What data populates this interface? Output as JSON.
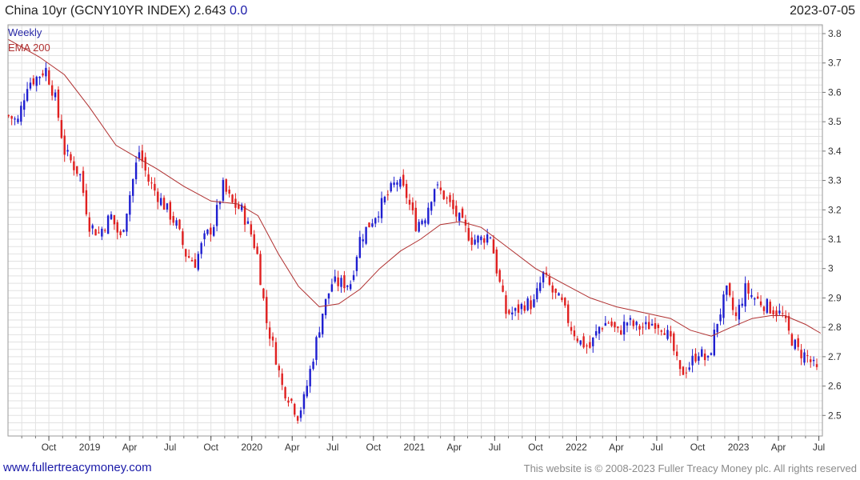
{
  "header": {
    "title": "China 10yr (GCNY10YR INDEX) 2.643",
    "change": "0.0",
    "date": "2023-07-05"
  },
  "footer": {
    "link": "www.fullertreacymoney.com",
    "copyright": "This website is © 2008-2023 Fuller Treacy Money plc. All rights reserved"
  },
  "colors": {
    "up": "#1f1fd0",
    "down": "#e02020",
    "ema": "#b03030",
    "grid": "#e2e2e2"
  },
  "chart_data": {
    "type": "candlestick",
    "legend": [
      "Weekly",
      "EMA 200"
    ],
    "legend_placement": "top-left",
    "grid": true,
    "ylim": [
      2.43,
      3.83
    ],
    "y_ticks": [
      2.5,
      2.6,
      2.7,
      2.8,
      2.9,
      3,
      3.1,
      3.2,
      3.3,
      3.4,
      3.5,
      3.6,
      3.7,
      3.8
    ],
    "y_tick_labels": [
      "2.5",
      "2.6",
      "2.7",
      "2.8",
      "2.9",
      "3",
      "3.1",
      "3.2",
      "3.3",
      "3.4",
      "3.5",
      "3.6",
      "3.7",
      "3.8"
    ],
    "x_range": [
      "2018-07-01",
      "2023-07-09"
    ],
    "x_ticks": [
      {
        "date": "2018-10-01",
        "label": "Oct"
      },
      {
        "date": "2019-01-01",
        "label": "2019"
      },
      {
        "date": "2019-04-01",
        "label": "Apr"
      },
      {
        "date": "2019-07-01",
        "label": "Jul"
      },
      {
        "date": "2019-10-01",
        "label": "Oct"
      },
      {
        "date": "2020-01-01",
        "label": "2020"
      },
      {
        "date": "2020-04-01",
        "label": "Apr"
      },
      {
        "date": "2020-07-01",
        "label": "Jul"
      },
      {
        "date": "2020-10-01",
        "label": "Oct"
      },
      {
        "date": "2021-01-01",
        "label": "2021"
      },
      {
        "date": "2021-04-01",
        "label": "Apr"
      },
      {
        "date": "2021-07-01",
        "label": "Jul"
      },
      {
        "date": "2021-10-01",
        "label": "Oct"
      },
      {
        "date": "2022-01-01",
        "label": "2022"
      },
      {
        "date": "2022-04-01",
        "label": "Apr"
      },
      {
        "date": "2022-07-01",
        "label": "Jul"
      },
      {
        "date": "2022-10-01",
        "label": "Oct"
      },
      {
        "date": "2023-01-01",
        "label": "2023"
      },
      {
        "date": "2023-04-01",
        "label": "Apr"
      },
      {
        "date": "2023-07-01",
        "label": "Jul"
      }
    ],
    "weekly_close": [
      {
        "date": "2018-07-02",
        "value": 3.52
      },
      {
        "date": "2018-07-23",
        "value": 3.5
      },
      {
        "date": "2018-08-13",
        "value": 3.63
      },
      {
        "date": "2018-09-03",
        "value": 3.65
      },
      {
        "date": "2018-09-24",
        "value": 3.68
      },
      {
        "date": "2018-10-15",
        "value": 3.58
      },
      {
        "date": "2018-11-05",
        "value": 3.4
      },
      {
        "date": "2018-11-26",
        "value": 3.35
      },
      {
        "date": "2018-12-10",
        "value": 3.32
      },
      {
        "date": "2018-12-31",
        "value": 3.15
      },
      {
        "date": "2019-01-21",
        "value": 3.12
      },
      {
        "date": "2019-02-18",
        "value": 3.18
      },
      {
        "date": "2019-03-11",
        "value": 3.1
      },
      {
        "date": "2019-04-01",
        "value": 3.25
      },
      {
        "date": "2019-04-22",
        "value": 3.4
      },
      {
        "date": "2019-05-13",
        "value": 3.3
      },
      {
        "date": "2019-06-03",
        "value": 3.25
      },
      {
        "date": "2019-06-24",
        "value": 3.2
      },
      {
        "date": "2019-07-15",
        "value": 3.15
      },
      {
        "date": "2019-08-05",
        "value": 3.05
      },
      {
        "date": "2019-08-26",
        "value": 3.02
      },
      {
        "date": "2019-09-16",
        "value": 3.1
      },
      {
        "date": "2019-10-07",
        "value": 3.15
      },
      {
        "date": "2019-10-28",
        "value": 3.28
      },
      {
        "date": "2019-11-18",
        "value": 3.22
      },
      {
        "date": "2019-12-09",
        "value": 3.2
      },
      {
        "date": "2019-12-30",
        "value": 3.12
      },
      {
        "date": "2020-01-13",
        "value": 3.05
      },
      {
        "date": "2020-02-03",
        "value": 2.82
      },
      {
        "date": "2020-02-24",
        "value": 2.7
      },
      {
        "date": "2020-03-09",
        "value": 2.6
      },
      {
        "date": "2020-03-30",
        "value": 2.55
      },
      {
        "date": "2020-04-13",
        "value": 2.5
      },
      {
        "date": "2020-04-27",
        "value": 2.55
      },
      {
        "date": "2020-05-18",
        "value": 2.7
      },
      {
        "date": "2020-06-08",
        "value": 2.85
      },
      {
        "date": "2020-06-29",
        "value": 2.95
      },
      {
        "date": "2020-07-20",
        "value": 2.95
      },
      {
        "date": "2020-08-10",
        "value": 2.95
      },
      {
        "date": "2020-08-31",
        "value": 3.1
      },
      {
        "date": "2020-09-21",
        "value": 3.15
      },
      {
        "date": "2020-10-12",
        "value": 3.2
      },
      {
        "date": "2020-11-02",
        "value": 3.25
      },
      {
        "date": "2020-11-23",
        "value": 3.3
      },
      {
        "date": "2020-12-14",
        "value": 3.25
      },
      {
        "date": "2021-01-04",
        "value": 3.15
      },
      {
        "date": "2021-01-25",
        "value": 3.18
      },
      {
        "date": "2021-02-15",
        "value": 3.28
      },
      {
        "date": "2021-03-08",
        "value": 3.25
      },
      {
        "date": "2021-03-29",
        "value": 3.2
      },
      {
        "date": "2021-04-19",
        "value": 3.15
      },
      {
        "date": "2021-05-10",
        "value": 3.1
      },
      {
        "date": "2021-05-31",
        "value": 3.1
      },
      {
        "date": "2021-06-21",
        "value": 3.12
      },
      {
        "date": "2021-07-05",
        "value": 3.0
      },
      {
        "date": "2021-07-26",
        "value": 2.85
      },
      {
        "date": "2021-08-16",
        "value": 2.85
      },
      {
        "date": "2021-09-06",
        "value": 2.88
      },
      {
        "date": "2021-09-27",
        "value": 2.88
      },
      {
        "date": "2021-10-18",
        "value": 2.98
      },
      {
        "date": "2021-11-08",
        "value": 2.92
      },
      {
        "date": "2021-11-29",
        "value": 2.88
      },
      {
        "date": "2021-12-20",
        "value": 2.8
      },
      {
        "date": "2022-01-10",
        "value": 2.75
      },
      {
        "date": "2022-01-31",
        "value": 2.73
      },
      {
        "date": "2022-02-21",
        "value": 2.8
      },
      {
        "date": "2022-03-14",
        "value": 2.82
      },
      {
        "date": "2022-04-04",
        "value": 2.78
      },
      {
        "date": "2022-04-25",
        "value": 2.82
      },
      {
        "date": "2022-05-16",
        "value": 2.8
      },
      {
        "date": "2022-06-06",
        "value": 2.8
      },
      {
        "date": "2022-06-27",
        "value": 2.82
      },
      {
        "date": "2022-07-18",
        "value": 2.8
      },
      {
        "date": "2022-08-08",
        "value": 2.72
      },
      {
        "date": "2022-08-22",
        "value": 2.64
      },
      {
        "date": "2022-09-12",
        "value": 2.67
      },
      {
        "date": "2022-10-03",
        "value": 2.72
      },
      {
        "date": "2022-10-24",
        "value": 2.68
      },
      {
        "date": "2022-11-14",
        "value": 2.82
      },
      {
        "date": "2022-12-05",
        "value": 2.92
      },
      {
        "date": "2022-12-26",
        "value": 2.83
      },
      {
        "date": "2023-01-16",
        "value": 2.93
      },
      {
        "date": "2023-02-06",
        "value": 2.9
      },
      {
        "date": "2023-02-27",
        "value": 2.88
      },
      {
        "date": "2023-03-20",
        "value": 2.86
      },
      {
        "date": "2023-04-10",
        "value": 2.84
      },
      {
        "date": "2023-04-24",
        "value": 2.78
      },
      {
        "date": "2023-05-15",
        "value": 2.72
      },
      {
        "date": "2023-06-05",
        "value": 2.7
      },
      {
        "date": "2023-06-26",
        "value": 2.65
      }
    ],
    "ema_200": [
      {
        "date": "2018-07-02",
        "value": 3.78
      },
      {
        "date": "2018-09-10",
        "value": 3.72
      },
      {
        "date": "2018-11-05",
        "value": 3.66
      },
      {
        "date": "2018-12-31",
        "value": 3.55
      },
      {
        "date": "2019-03-01",
        "value": 3.42
      },
      {
        "date": "2019-04-15",
        "value": 3.38
      },
      {
        "date": "2019-06-01",
        "value": 3.34
      },
      {
        "date": "2019-08-01",
        "value": 3.28
      },
      {
        "date": "2019-10-01",
        "value": 3.23
      },
      {
        "date": "2019-12-01",
        "value": 3.22
      },
      {
        "date": "2020-01-15",
        "value": 3.18
      },
      {
        "date": "2020-03-01",
        "value": 3.05
      },
      {
        "date": "2020-04-15",
        "value": 2.94
      },
      {
        "date": "2020-06-01",
        "value": 2.87
      },
      {
        "date": "2020-07-15",
        "value": 2.88
      },
      {
        "date": "2020-09-01",
        "value": 2.93
      },
      {
        "date": "2020-10-15",
        "value": 3.0
      },
      {
        "date": "2020-12-01",
        "value": 3.06
      },
      {
        "date": "2021-01-15",
        "value": 3.1
      },
      {
        "date": "2021-03-01",
        "value": 3.15
      },
      {
        "date": "2021-04-15",
        "value": 3.16
      },
      {
        "date": "2021-06-01",
        "value": 3.14
      },
      {
        "date": "2021-08-01",
        "value": 3.07
      },
      {
        "date": "2021-10-01",
        "value": 3.0
      },
      {
        "date": "2021-12-01",
        "value": 2.95
      },
      {
        "date": "2022-02-01",
        "value": 2.9
      },
      {
        "date": "2022-04-01",
        "value": 2.87
      },
      {
        "date": "2022-06-01",
        "value": 2.85
      },
      {
        "date": "2022-08-01",
        "value": 2.83
      },
      {
        "date": "2022-09-15",
        "value": 2.79
      },
      {
        "date": "2022-11-01",
        "value": 2.77
      },
      {
        "date": "2022-12-15",
        "value": 2.8
      },
      {
        "date": "2023-02-01",
        "value": 2.83
      },
      {
        "date": "2023-03-15",
        "value": 2.84
      },
      {
        "date": "2023-04-15",
        "value": 2.84
      },
      {
        "date": "2023-06-01",
        "value": 2.81
      },
      {
        "date": "2023-07-05",
        "value": 2.78
      }
    ]
  }
}
